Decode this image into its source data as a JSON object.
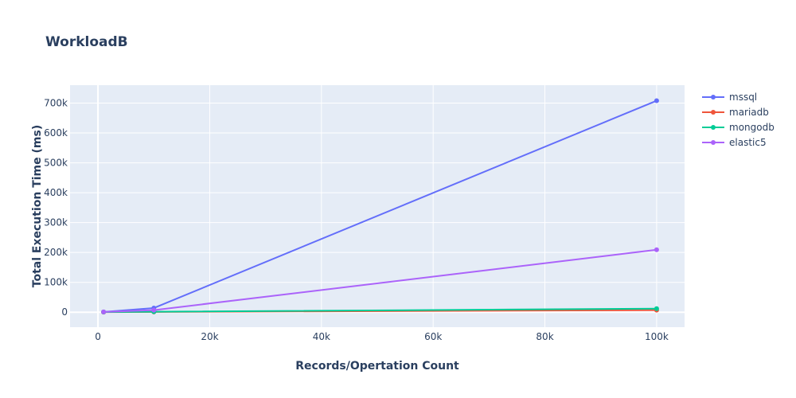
{
  "chart_data": {
    "type": "line",
    "title": "WorkloadB",
    "xlabel": "Records/Opertation Count",
    "ylabel": "Total Execution Time (ms)",
    "xlim": [
      -5000,
      105000
    ],
    "ylim": [
      -50000,
      760000
    ],
    "x_ticks": [
      0,
      20000,
      40000,
      60000,
      80000,
      100000
    ],
    "x_tick_labels": [
      "0",
      "20k",
      "40k",
      "60k",
      "80k",
      "100k"
    ],
    "y_ticks": [
      0,
      100000,
      200000,
      300000,
      400000,
      500000,
      600000,
      700000
    ],
    "y_tick_labels": [
      "0",
      "100k",
      "200k",
      "300k",
      "400k",
      "500k",
      "600k",
      "700k"
    ],
    "grid": true,
    "legend_position": "top-right",
    "x": [
      1000,
      10000,
      100000
    ],
    "series": [
      {
        "name": "mssql",
        "color": "#636efa",
        "values": [
          1000,
          14000,
          708000
        ]
      },
      {
        "name": "mariadb",
        "color": "#ef553b",
        "values": [
          300,
          1000,
          7000
        ]
      },
      {
        "name": "mongodb",
        "color": "#00cc96",
        "values": [
          500,
          1500,
          12000
        ]
      },
      {
        "name": "elastic5",
        "color": "#ab63fa",
        "values": [
          1000,
          7000,
          209000
        ]
      }
    ]
  }
}
